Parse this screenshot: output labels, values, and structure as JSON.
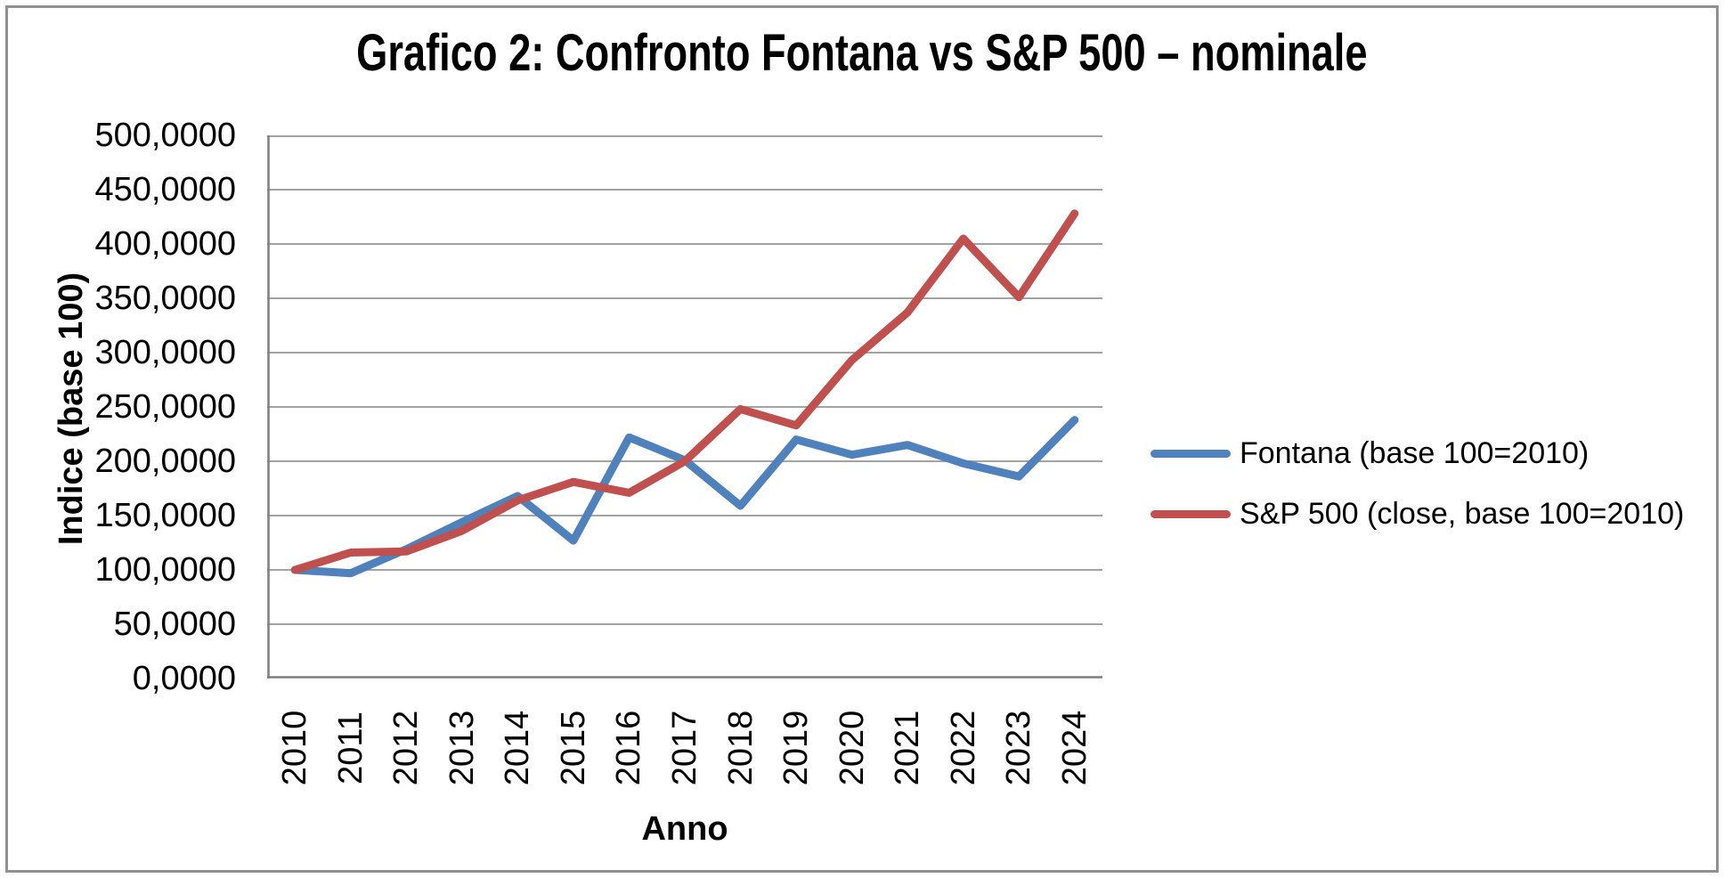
{
  "chart_title": "Grafico 2: Confronto Fontana vs S&P 500 – nominale",
  "chart_data": {
    "type": "line",
    "title": "Grafico 2: Confronto Fontana vs S&P 500 – nominale",
    "xlabel": "Anno",
    "ylabel": "Indice (base 100)",
    "categories": [
      "2010",
      "2011",
      "2012",
      "2013",
      "2014",
      "2015",
      "2016",
      "2017",
      "2018",
      "2019",
      "2020",
      "2021",
      "2022",
      "2023",
      "2024"
    ],
    "series": [
      {
        "name": "Fontana (base 100=2010)",
        "color": "#4F81BD",
        "values": [
          100,
          97,
          119,
          144,
          168,
          127,
          222,
          201,
          159,
          220,
          206,
          215,
          198,
          186,
          238
        ]
      },
      {
        "name": "S&P 500 (close, base 100=2010)",
        "color": "#C0504D",
        "values": [
          100,
          116,
          117,
          136,
          164,
          181,
          171,
          200,
          248,
          233,
          293,
          337,
          405,
          351,
          428
        ]
      }
    ],
    "ylim": [
      0,
      500
    ],
    "ytick_step": 50,
    "ytick_labels_top_to_bottom": [
      "500,0000",
      "450,0000",
      "400,0000",
      "350,0000",
      "300,0000",
      "250,0000",
      "200,0000",
      "150,0000",
      "100,0000",
      "50,0000",
      "0,0000"
    ],
    "grid": true,
    "legend_position": "right",
    "colors": {
      "gridline": "#A3A3A3",
      "axis_line": "#7F7F7F",
      "text": "#000000",
      "frame_border": "#919191"
    }
  }
}
